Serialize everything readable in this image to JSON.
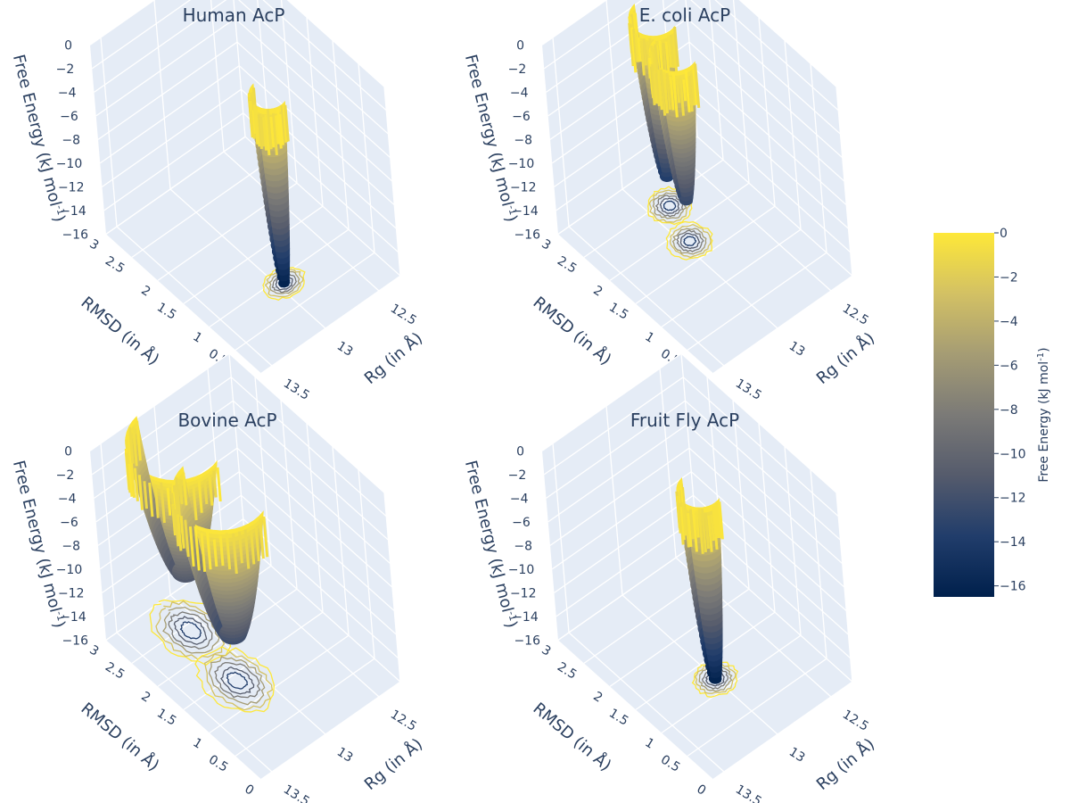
{
  "chart_data": {
    "type": "surface3d",
    "panels": [
      {
        "title": "Human AcP",
        "minimum": {
          "rmsd": 0.9,
          "rg": 12.95,
          "free_energy": -16.0
        },
        "basin_width": 0.55,
        "wells": [
          {
            "rmsd": 0.9,
            "rg": 12.95,
            "depth": -16.0
          }
        ],
        "spiky_rim_max": 0
      },
      {
        "title": "E. coli AcP",
        "minimum": {
          "rmsd": 2.3,
          "rg": 12.85,
          "free_energy": -13.5
        },
        "basin_width": 0.7,
        "wells": [
          {
            "rmsd": 2.4,
            "rg": 12.85,
            "depth": -13.5
          },
          {
            "rmsd": 1.8,
            "rg": 12.95,
            "depth": -12.5
          }
        ],
        "spiky_rim_max": 0
      },
      {
        "title": "Bovine AcP",
        "minimum": {
          "rmsd": 1.9,
          "rg": 13.1,
          "free_energy": -12.0
        },
        "basin_width": 1.4,
        "wells": [
          {
            "rmsd": 2.4,
            "rg": 13.1,
            "depth": -11.0
          },
          {
            "rmsd": 1.4,
            "rg": 13.15,
            "depth": -12.0
          }
        ],
        "spiky_rim_max": 0
      },
      {
        "title": "Fruit Fly AcP",
        "minimum": {
          "rmsd": 1.2,
          "rg": 13.0,
          "free_energy": -16.0
        },
        "basin_width": 0.65,
        "wells": [
          {
            "rmsd": 1.2,
            "rg": 13.0,
            "depth": -16.0
          }
        ],
        "spiky_rim_max": 0
      }
    ],
    "axes": {
      "x": {
        "title": "RMSD (in  Å)",
        "ticks": [
          "0",
          "0.5",
          "1",
          "1.5",
          "2",
          "2.5",
          "3"
        ],
        "range": [
          0,
          3
        ]
      },
      "y": {
        "title": "Rg (in  Å)",
        "ticks": [
          "12.5",
          "13",
          "13.5"
        ],
        "range": [
          12.3,
          13.6
        ]
      },
      "z": {
        "title": "Free Energy (kJ mol",
        "title_sup": "-1",
        "title_end": ")",
        "ticks": [
          "0",
          "−2",
          "−4",
          "−6",
          "−8",
          "−10",
          "−12",
          "−14",
          "−16"
        ],
        "range": [
          -16,
          0
        ]
      }
    },
    "projected_contours": true,
    "grid": true,
    "colorscale": "cividis",
    "colorscale_stops": [
      "#00204c",
      "#213d6b",
      "#555b6c",
      "#7b7a77",
      "#a59c74",
      "#d3c164",
      "#fee838"
    ],
    "colorbar": {
      "title": "Free Energy (kJ mol",
      "title_sup": "-1",
      "title_end": ")",
      "range": [
        -16.5,
        0
      ],
      "ticks": [
        "0",
        "−2",
        "−4",
        "−6",
        "−8",
        "−10",
        "−12",
        "−14",
        "−16"
      ]
    },
    "scene_background": "#e5ecf6",
    "grid_color": "#ffffff"
  }
}
